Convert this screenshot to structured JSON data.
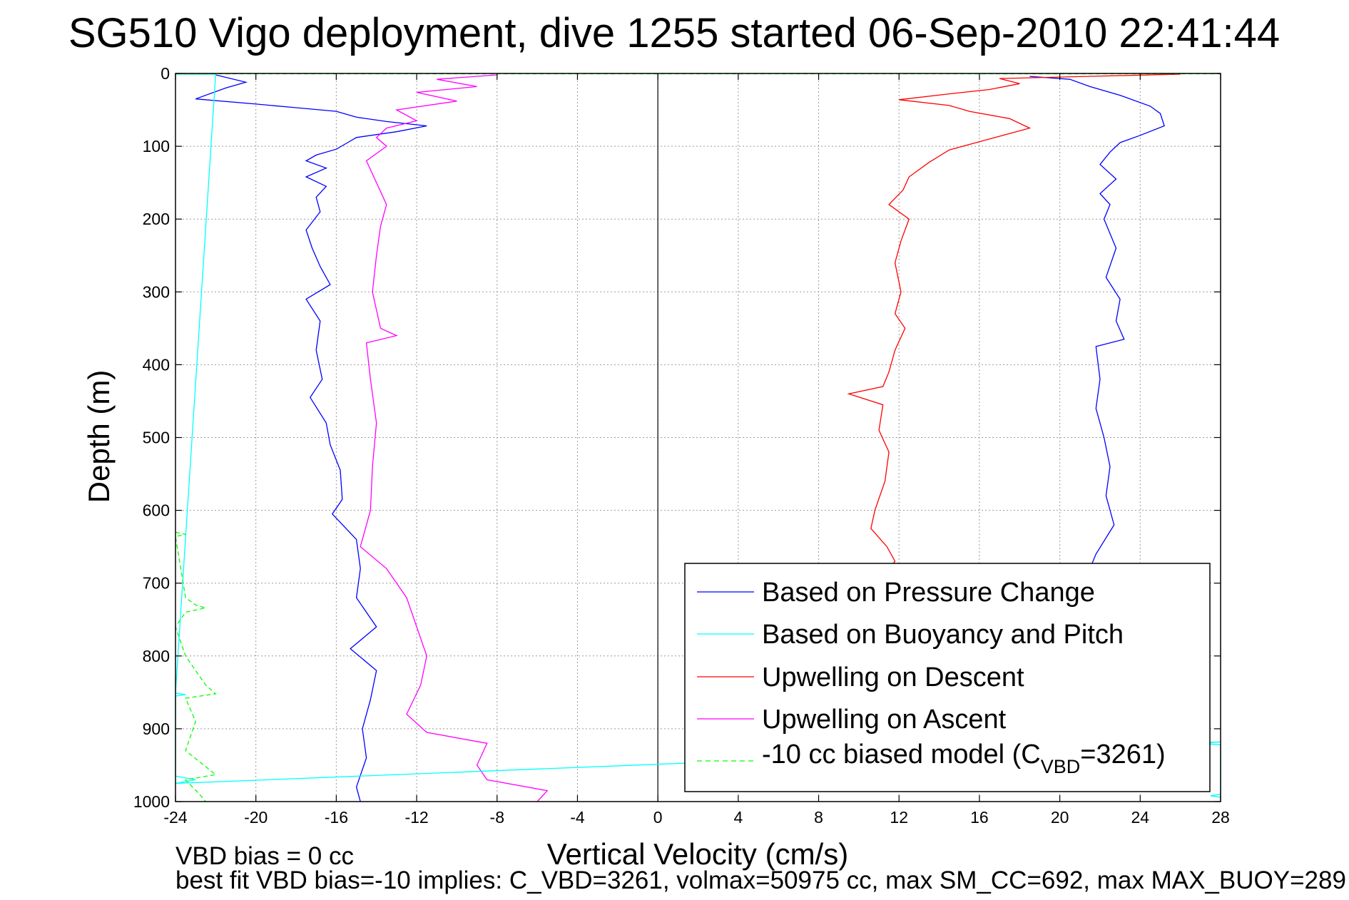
{
  "chart_data": {
    "type": "line",
    "title": "SG510 Vigo deployment, dive 1255 started 06-Sep-2010 22:41:44",
    "xlabel": "Vertical Velocity (cm/s)",
    "ylabel": "Depth (m)",
    "xlim": [
      -24,
      28
    ],
    "ylim": [
      0,
      1000
    ],
    "y_reversed": true,
    "xticks": [
      "-24",
      "-20",
      "-16",
      "-12",
      "-8",
      "-4",
      "0",
      "4",
      "8",
      "12",
      "16",
      "20",
      "24",
      "28"
    ],
    "yticks": [
      "0",
      "100",
      "200",
      "300",
      "400",
      "500",
      "600",
      "700",
      "800",
      "900",
      "1000"
    ],
    "grid": true,
    "legend_position": "bottom-right",
    "legend": {
      "pressure": "Based on Pressure Change",
      "buoyancy": "Based on Buoyancy and Pitch",
      "descent": "Upwelling on Descent",
      "ascent": "Upwelling on Ascent",
      "model_prefix": "-10 cc biased model (C",
      "model_sub": "VBD",
      "model_suffix": "=3261)"
    },
    "notes": [
      "VBD bias = 0 cc",
      "best fit VBD bias=-10 implies: C_VBD=3261, volmax=50975 cc, max SM_CC=692, max MAX_BUOY=289 cc"
    ],
    "colors": {
      "pressure": "#0000ff",
      "buoyancy": "#00ffff",
      "descent": "#ff0000",
      "ascent": "#ff00ff",
      "model": "#00ff00",
      "zero_line": "#000000"
    },
    "series": [
      {
        "key": "pressure_descent",
        "color": "#0000ff",
        "points": [
          [
            -22,
            2
          ],
          [
            -20.5,
            12
          ],
          [
            -21.5,
            20
          ],
          [
            -23,
            35
          ],
          [
            -20,
            42
          ],
          [
            -18,
            47
          ],
          [
            -16,
            52
          ],
          [
            -15,
            60
          ],
          [
            -13.5,
            66
          ],
          [
            -11.5,
            72
          ],
          [
            -13,
            80
          ],
          [
            -15,
            88
          ],
          [
            -15.5,
            96
          ],
          [
            -16,
            104
          ],
          [
            -17,
            112
          ],
          [
            -17.5,
            120
          ],
          [
            -16.5,
            130
          ],
          [
            -17.5,
            142
          ],
          [
            -16.5,
            155
          ],
          [
            -17,
            170
          ],
          [
            -16.8,
            190
          ],
          [
            -17.5,
            215
          ],
          [
            -17.2,
            240
          ],
          [
            -16.8,
            265
          ],
          [
            -16.3,
            290
          ],
          [
            -17.5,
            310
          ],
          [
            -16.8,
            340
          ],
          [
            -17,
            380
          ],
          [
            -16.7,
            420
          ],
          [
            -17.3,
            445
          ],
          [
            -16.5,
            480
          ],
          [
            -16.3,
            510
          ],
          [
            -15.8,
            545
          ],
          [
            -15.7,
            585
          ],
          [
            -16.2,
            605
          ],
          [
            -15,
            640
          ],
          [
            -14.8,
            680
          ],
          [
            -15,
            720
          ],
          [
            -14,
            760
          ],
          [
            -15.3,
            790
          ],
          [
            -14,
            820
          ],
          [
            -14.3,
            860
          ],
          [
            -14.7,
            900
          ],
          [
            -14.5,
            940
          ],
          [
            -15,
            980
          ],
          [
            -14.8,
            1000
          ]
        ]
      },
      {
        "key": "pressure_ascent",
        "color": "#0000ff",
        "points": [
          [
            18.5,
            4
          ],
          [
            20.5,
            8
          ],
          [
            21.5,
            18
          ],
          [
            23,
            30
          ],
          [
            24.5,
            45
          ],
          [
            25,
            55
          ],
          [
            25.2,
            72
          ],
          [
            24,
            85
          ],
          [
            23,
            95
          ],
          [
            22.5,
            108
          ],
          [
            22,
            125
          ],
          [
            22.8,
            145
          ],
          [
            22,
            165
          ],
          [
            22.5,
            180
          ],
          [
            22.2,
            200
          ],
          [
            22.8,
            240
          ],
          [
            22.3,
            280
          ],
          [
            23,
            310
          ],
          [
            22.8,
            340
          ],
          [
            23.2,
            365
          ],
          [
            21.8,
            375
          ],
          [
            22,
            420
          ],
          [
            21.8,
            460
          ],
          [
            22.2,
            500
          ],
          [
            22.5,
            540
          ],
          [
            22.3,
            580
          ],
          [
            22.7,
            620
          ],
          [
            21.8,
            660
          ],
          [
            21.5,
            680
          ]
        ]
      },
      {
        "key": "descent_upwelling",
        "color": "#ff0000",
        "points": [
          [
            26,
            1
          ],
          [
            17,
            7
          ],
          [
            18,
            14
          ],
          [
            16.5,
            22
          ],
          [
            14.5,
            28
          ],
          [
            12,
            36
          ],
          [
            14.5,
            44
          ],
          [
            15.5,
            52
          ],
          [
            17.5,
            62
          ],
          [
            18.5,
            75
          ],
          [
            16.5,
            90
          ],
          [
            14.5,
            105
          ],
          [
            13.5,
            122
          ],
          [
            12.5,
            142
          ],
          [
            12.2,
            160
          ],
          [
            11.5,
            180
          ],
          [
            12.5,
            200
          ],
          [
            12.1,
            230
          ],
          [
            11.8,
            260
          ],
          [
            12.1,
            300
          ],
          [
            11.8,
            330
          ],
          [
            12.3,
            350
          ],
          [
            11.8,
            380
          ],
          [
            11.5,
            410
          ],
          [
            11.2,
            430
          ],
          [
            9.5,
            440
          ],
          [
            11.2,
            455
          ],
          [
            11,
            490
          ],
          [
            11.5,
            520
          ],
          [
            11.3,
            560
          ],
          [
            10.8,
            600
          ],
          [
            10.6,
            625
          ],
          [
            11.4,
            650
          ],
          [
            11.8,
            670
          ],
          [
            11.5,
            680
          ]
        ]
      },
      {
        "key": "ascent_upwelling",
        "color": "#ff00ff",
        "points": [
          [
            -8,
            2
          ],
          [
            -11,
            8
          ],
          [
            -9,
            18
          ],
          [
            -12,
            26
          ],
          [
            -10,
            38
          ],
          [
            -13,
            50
          ],
          [
            -12,
            65
          ],
          [
            -13.5,
            75
          ],
          [
            -14,
            88
          ],
          [
            -13.5,
            100
          ],
          [
            -14.5,
            120
          ],
          [
            -14,
            150
          ],
          [
            -13.5,
            180
          ],
          [
            -13.8,
            210
          ],
          [
            -14,
            250
          ],
          [
            -14.2,
            300
          ],
          [
            -13.8,
            350
          ],
          [
            -13,
            360
          ],
          [
            -14.5,
            370
          ],
          [
            -14.3,
            420
          ],
          [
            -14,
            480
          ],
          [
            -14.2,
            540
          ],
          [
            -14.3,
            600
          ],
          [
            -14.8,
            650
          ],
          [
            -13.5,
            680
          ],
          [
            -12.5,
            720
          ],
          [
            -12,
            760
          ],
          [
            -11.5,
            800
          ],
          [
            -11.8,
            840
          ],
          [
            -12.5,
            880
          ],
          [
            -11.5,
            905
          ],
          [
            -8.5,
            920
          ],
          [
            -9,
            950
          ],
          [
            -8.5,
            970
          ],
          [
            -5.5,
            985
          ],
          [
            -6,
            1000
          ]
        ]
      },
      {
        "key": "buoyancy_model",
        "color": "#00ffff",
        "points": [
          [
            -24,
            1
          ],
          [
            -22,
            1
          ],
          [
            -24,
            851
          ],
          [
            -23.5,
            853
          ],
          [
            -24,
            855
          ],
          [
            -24,
            965
          ],
          [
            -23,
            970
          ],
          [
            -24,
            975
          ],
          [
            28,
            918
          ],
          [
            27,
            920
          ],
          [
            28,
            922
          ],
          [
            28,
            990
          ],
          [
            27.5,
            992
          ],
          [
            28,
            994
          ]
        ]
      },
      {
        "key": "biased_model",
        "color": "#00ff00",
        "dashed": true,
        "points": [
          [
            -24,
            630
          ],
          [
            -23.5,
            633
          ],
          [
            -24,
            636
          ],
          [
            -23.5,
            720
          ],
          [
            -23,
            730
          ],
          [
            -22.5,
            734
          ],
          [
            -23.5,
            740
          ],
          [
            -24,
            760
          ],
          [
            -23.5,
            800
          ],
          [
            -22.5,
            840
          ],
          [
            -22,
            852
          ],
          [
            -23.5,
            858
          ],
          [
            -23,
            890
          ],
          [
            -23.5,
            930
          ],
          [
            -22,
            963
          ],
          [
            -23.5,
            970
          ],
          [
            -22.8,
            990
          ],
          [
            -22.5,
            1000
          ]
        ]
      },
      {
        "key": "surface_trace",
        "color": "#00ff00",
        "dashed": true,
        "points": [
          [
            -24,
            0.5
          ],
          [
            28,
            0.5
          ]
        ]
      }
    ]
  }
}
